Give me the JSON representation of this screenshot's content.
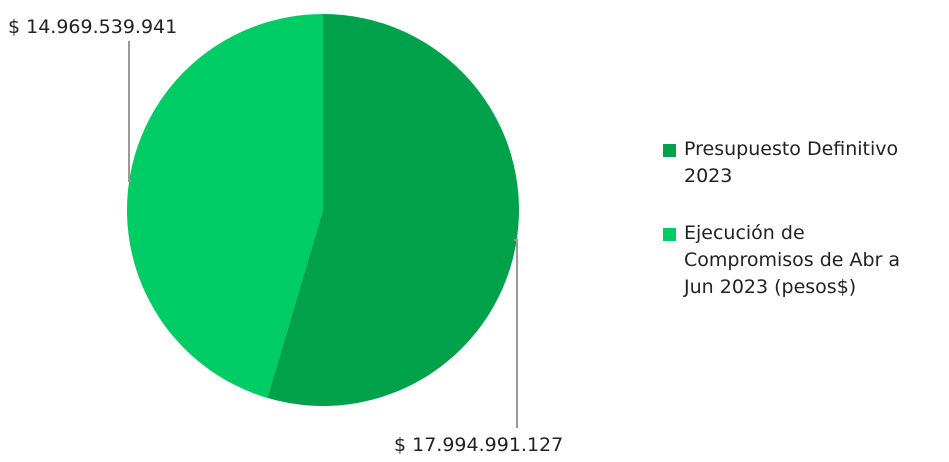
{
  "chart_data": {
    "type": "pie",
    "categories": [
      "Presupuesto Definitivo\n2023",
      "Ejecución de\nCompromisos de Abr a\nJun 2023 (pesos$)"
    ],
    "values": [
      17994991127,
      14969539941
    ],
    "data_labels": [
      "$ 17.994.991.127",
      "$ 14.969.539.941"
    ],
    "colors": [
      "#00a14b",
      "#00cc66"
    ],
    "legend_position": "right",
    "start_angle_deg": 0,
    "direction": "clockwise"
  }
}
